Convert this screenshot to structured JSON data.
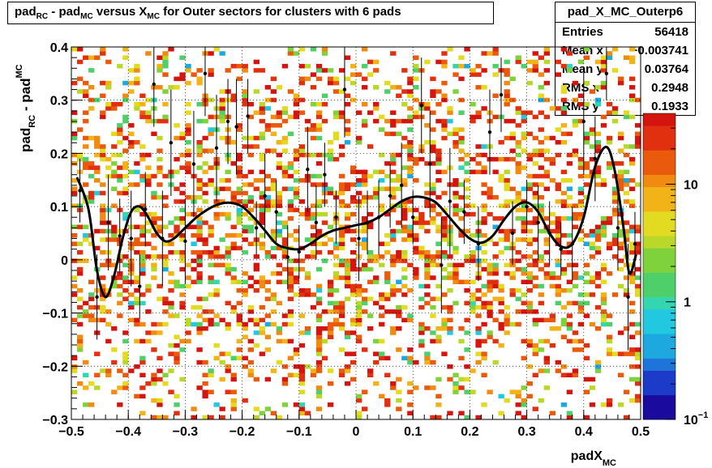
{
  "title": {
    "parts": [
      {
        "t": "pad"
      },
      {
        "t": "RC",
        "sub": true
      },
      {
        "t": " - pad"
      },
      {
        "t": "MC",
        "sub": true
      },
      {
        "t": " versus X"
      },
      {
        "t": "MC",
        "sub": true
      },
      {
        "t": " for Outer sectors for clusters with 6 pads"
      }
    ]
  },
  "stats": {
    "name": "pad_X_MC_Outerp6",
    "rows": [
      {
        "label": "Entries",
        "value": "56418"
      },
      {
        "label": "Mean x",
        "value": "−0.003741"
      },
      {
        "label": "Mean y",
        "value": "0.03764"
      },
      {
        "label": "RMS x",
        "value": "0.2948"
      },
      {
        "label": "RMS y",
        "value": "0.1933"
      }
    ]
  },
  "colors": {
    "palette": [
      "#1a0a9e",
      "#1c3bc9",
      "#1e74d8",
      "#1ea8e0",
      "#22c8e0",
      "#33d6b0",
      "#4fcf6a",
      "#7fd23b",
      "#b9d82a",
      "#e3da22",
      "#f2b318",
      "#f08a10",
      "#ea5a0d",
      "#e03010",
      "#d4140f"
    ],
    "curve": "#000000",
    "points": "#000000"
  },
  "chart_data": {
    "type": "heatmap",
    "xlabel": {
      "base": "padX",
      "sub": "MC"
    },
    "ylabel": {
      "base1": "pad",
      "sub1": "RC",
      "mid": " - pad",
      "sub2": "MC"
    },
    "xlim": [
      -0.5,
      0.5
    ],
    "ylim": [
      -0.3,
      0.4
    ],
    "x_ticks": [
      "−0.5",
      "−0.4",
      "−0.3",
      "−0.2",
      "−0.1",
      "0",
      "0.1",
      "0.2",
      "0.3",
      "0.4",
      "0.5"
    ],
    "x_tick_values": [
      -0.5,
      -0.4,
      -0.3,
      -0.2,
      -0.1,
      0,
      0.1,
      0.2,
      0.3,
      0.4,
      0.5
    ],
    "y_ticks": [
      "−0.3",
      "−0.2",
      "−0.1",
      "0",
      "0.1",
      "0.2",
      "0.3",
      "0.4"
    ],
    "y_tick_values": [
      -0.3,
      -0.2,
      -0.1,
      0,
      0.1,
      0.2,
      0.3,
      0.4
    ],
    "grid": true,
    "z_scale": "log",
    "z_range": [
      0.1,
      40
    ],
    "z_ticks": [
      {
        "label": "10",
        "exp": "",
        "value": 10
      },
      {
        "label": "1",
        "exp": "",
        "value": 1
      },
      {
        "label": "10",
        "exp": "−1",
        "value": 0.1
      }
    ],
    "profile_points": [
      {
        "x": -0.49,
        "y": 0.155
      },
      {
        "x": -0.47,
        "y": 0.095
      },
      {
        "x": -0.455,
        "y": -0.02
      },
      {
        "x": -0.44,
        "y": -0.07
      },
      {
        "x": -0.425,
        "y": -0.03
      },
      {
        "x": -0.41,
        "y": 0.04
      },
      {
        "x": -0.395,
        "y": 0.09
      },
      {
        "x": -0.38,
        "y": 0.1
      },
      {
        "x": -0.365,
        "y": 0.08
      },
      {
        "x": -0.35,
        "y": 0.05
      },
      {
        "x": -0.335,
        "y": 0.035
      },
      {
        "x": -0.32,
        "y": 0.04
      },
      {
        "x": -0.3,
        "y": 0.06
      },
      {
        "x": -0.28,
        "y": 0.08
      },
      {
        "x": -0.26,
        "y": 0.095
      },
      {
        "x": -0.24,
        "y": 0.105
      },
      {
        "x": -0.22,
        "y": 0.107
      },
      {
        "x": -0.2,
        "y": 0.1
      },
      {
        "x": -0.18,
        "y": 0.08
      },
      {
        "x": -0.16,
        "y": 0.055
      },
      {
        "x": -0.14,
        "y": 0.03
      },
      {
        "x": -0.12,
        "y": 0.022
      },
      {
        "x": -0.1,
        "y": 0.02
      },
      {
        "x": -0.08,
        "y": 0.03
      },
      {
        "x": -0.06,
        "y": 0.045
      },
      {
        "x": -0.04,
        "y": 0.055
      },
      {
        "x": -0.02,
        "y": 0.06
      },
      {
        "x": 0.0,
        "y": 0.065
      },
      {
        "x": 0.02,
        "y": 0.07
      },
      {
        "x": 0.04,
        "y": 0.08
      },
      {
        "x": 0.06,
        "y": 0.095
      },
      {
        "x": 0.08,
        "y": 0.11
      },
      {
        "x": 0.1,
        "y": 0.118
      },
      {
        "x": 0.12,
        "y": 0.117
      },
      {
        "x": 0.14,
        "y": 0.108
      },
      {
        "x": 0.16,
        "y": 0.085
      },
      {
        "x": 0.18,
        "y": 0.06
      },
      {
        "x": 0.2,
        "y": 0.04
      },
      {
        "x": 0.22,
        "y": 0.032
      },
      {
        "x": 0.24,
        "y": 0.045
      },
      {
        "x": 0.26,
        "y": 0.075
      },
      {
        "x": 0.28,
        "y": 0.1
      },
      {
        "x": 0.3,
        "y": 0.108
      },
      {
        "x": 0.32,
        "y": 0.09
      },
      {
        "x": 0.34,
        "y": 0.05
      },
      {
        "x": 0.36,
        "y": 0.025
      },
      {
        "x": 0.38,
        "y": 0.03
      },
      {
        "x": 0.4,
        "y": 0.08
      },
      {
        "x": 0.42,
        "y": 0.175
      },
      {
        "x": 0.44,
        "y": 0.212
      },
      {
        "x": 0.455,
        "y": 0.165
      },
      {
        "x": 0.47,
        "y": 0.06
      },
      {
        "x": 0.48,
        "y": -0.025
      },
      {
        "x": 0.492,
        "y": 0.01
      }
    ],
    "data_points": [
      {
        "x": -0.485,
        "y": 0.13,
        "err": 0.06
      },
      {
        "x": -0.455,
        "y": -0.07,
        "err": 0.08
      },
      {
        "x": -0.435,
        "y": 0.07,
        "err": 0.09
      },
      {
        "x": -0.415,
        "y": 0.045,
        "err": 0.07
      },
      {
        "x": -0.395,
        "y": 0.04,
        "err": 0.09
      },
      {
        "x": -0.38,
        "y": -0.05,
        "err": 0.06
      },
      {
        "x": -0.37,
        "y": 0.095,
        "err": 0.07
      },
      {
        "x": -0.355,
        "y": 0.33,
        "err": 0.08
      },
      {
        "x": -0.34,
        "y": 0.04,
        "err": 0.09
      },
      {
        "x": -0.325,
        "y": 0.22,
        "err": 0.1
      },
      {
        "x": -0.3,
        "y": 0.035,
        "err": 0.08
      },
      {
        "x": -0.285,
        "y": 0.18,
        "err": 0.1
      },
      {
        "x": -0.265,
        "y": 0.35,
        "err": 0.08
      },
      {
        "x": -0.245,
        "y": 0.21,
        "err": 0.1
      },
      {
        "x": -0.225,
        "y": 0.26,
        "err": 0.08
      },
      {
        "x": -0.21,
        "y": 0.25,
        "err": 0.09
      },
      {
        "x": -0.19,
        "y": 0.27,
        "err": 0.07
      },
      {
        "x": -0.175,
        "y": 0.06,
        "err": 0.05
      },
      {
        "x": -0.16,
        "y": 0.12,
        "err": 0.08
      },
      {
        "x": -0.14,
        "y": 0.09,
        "err": 0.06
      },
      {
        "x": -0.12,
        "y": 0.005,
        "err": 0.06
      },
      {
        "x": -0.1,
        "y": 0.015,
        "err": 0.05
      },
      {
        "x": -0.085,
        "y": 0.17,
        "err": 0.08
      },
      {
        "x": -0.07,
        "y": 0.07,
        "err": 0.07
      },
      {
        "x": -0.055,
        "y": 0.16,
        "err": 0.06
      },
      {
        "x": -0.035,
        "y": 0.08,
        "err": 0.05
      },
      {
        "x": -0.02,
        "y": 0.32,
        "err": 0.09
      },
      {
        "x": 0.005,
        "y": 0.04,
        "err": 0.08
      },
      {
        "x": 0.02,
        "y": 0.07,
        "err": 0.06
      },
      {
        "x": 0.04,
        "y": 0.08,
        "err": 0.07
      },
      {
        "x": 0.06,
        "y": 0.12,
        "err": 0.06
      },
      {
        "x": 0.08,
        "y": 0.14,
        "err": 0.08
      },
      {
        "x": 0.1,
        "y": 0.08,
        "err": 0.05
      },
      {
        "x": 0.115,
        "y": 0.29,
        "err": 0.09
      },
      {
        "x": 0.13,
        "y": 0.18,
        "err": 0.1
      },
      {
        "x": 0.15,
        "y": -0.01,
        "err": 0.09
      },
      {
        "x": 0.165,
        "y": 0.11,
        "err": 0.1
      },
      {
        "x": 0.19,
        "y": 0.09,
        "err": 0.06
      },
      {
        "x": 0.215,
        "y": 0.03,
        "err": 0.07
      },
      {
        "x": 0.235,
        "y": 0.24,
        "err": 0.08
      },
      {
        "x": 0.255,
        "y": 0.31,
        "err": 0.07
      },
      {
        "x": 0.275,
        "y": 0.05,
        "err": 0.06
      },
      {
        "x": 0.3,
        "y": 0.1,
        "err": 0.05
      },
      {
        "x": 0.32,
        "y": 0.07,
        "err": 0.07
      },
      {
        "x": 0.34,
        "y": 0.05,
        "err": 0.06
      },
      {
        "x": 0.36,
        "y": 0.02,
        "err": 0.05
      },
      {
        "x": 0.38,
        "y": 0.03,
        "err": 0.07
      },
      {
        "x": 0.4,
        "y": 0.26,
        "err": 0.1
      },
      {
        "x": 0.42,
        "y": 0.19,
        "err": 0.08
      },
      {
        "x": 0.44,
        "y": 0.35,
        "err": 0.05
      },
      {
        "x": 0.46,
        "y": 0.06,
        "err": 0.08
      },
      {
        "x": 0.478,
        "y": -0.07,
        "err": 0.1
      },
      {
        "x": 0.49,
        "y": 0.03,
        "err": 0.06
      }
    ]
  }
}
